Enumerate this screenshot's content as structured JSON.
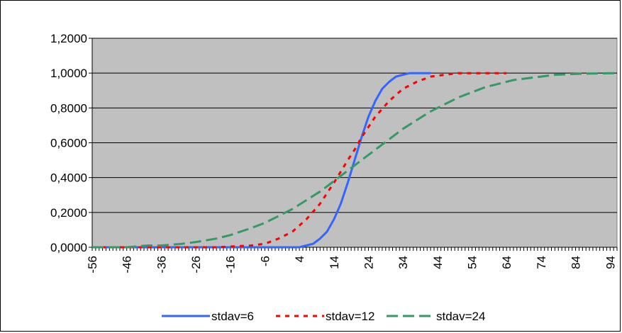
{
  "chart_data": {
    "type": "line",
    "title": "",
    "xlabel": "",
    "ylabel": "",
    "ylim": [
      0,
      1.2
    ],
    "xlim": [
      -56,
      96
    ],
    "y_ticks": [
      "0,0000",
      "0,2000",
      "0,4000",
      "0,6000",
      "0,8000",
      "1,0000",
      "1,2000"
    ],
    "x_tick_labels": [
      "-56",
      "-46",
      "-36",
      "-26",
      "-16",
      "-6",
      "4",
      "14",
      "24",
      "34",
      "44",
      "54",
      "64",
      "74",
      "84",
      "94"
    ],
    "grid": "horizontal",
    "plot_background": "#c0c0c0",
    "legend_position": "bottom",
    "series": [
      {
        "name": "stdav=6",
        "color": "#3366ff",
        "dash": "solid",
        "x": [
          -56,
          0,
          4,
          6,
          8,
          10,
          12,
          14,
          16,
          18,
          20,
          22,
          24,
          26,
          28,
          30,
          32,
          34,
          36,
          40,
          42
        ],
        "y": [
          0.0,
          0.0,
          0.0,
          0.01,
          0.02,
          0.05,
          0.09,
          0.16,
          0.25,
          0.37,
          0.5,
          0.63,
          0.75,
          0.84,
          0.91,
          0.95,
          0.98,
          0.99,
          1.0,
          1.0,
          1.0
        ]
      },
      {
        "name": "stdav=12",
        "color": "#ff0000",
        "dash": "dotted",
        "x": [
          -56,
          -20,
          -10,
          -6,
          -2,
          2,
          6,
          10,
          14,
          18,
          20,
          22,
          26,
          30,
          34,
          38,
          42,
          46,
          50,
          56,
          64
        ],
        "y": [
          0.0,
          0.0,
          0.01,
          0.02,
          0.05,
          0.09,
          0.16,
          0.25,
          0.37,
          0.5,
          0.56,
          0.63,
          0.75,
          0.84,
          0.91,
          0.95,
          0.98,
          0.99,
          1.0,
          1.0,
          1.0
        ]
      },
      {
        "name": "stdav=24",
        "color": "#339966",
        "dash": "dashed",
        "x": [
          -56,
          -46,
          -40,
          -36,
          -30,
          -26,
          -20,
          -16,
          -10,
          -6,
          -2,
          2,
          6,
          10,
          14,
          18,
          22,
          26,
          30,
          34,
          38,
          42,
          46,
          50,
          54,
          58,
          62,
          66,
          70,
          74,
          78,
          86,
          96
        ],
        "y": [
          0.0,
          0.0,
          0.01,
          0.01,
          0.02,
          0.03,
          0.05,
          0.07,
          0.11,
          0.14,
          0.18,
          0.22,
          0.27,
          0.32,
          0.38,
          0.44,
          0.5,
          0.56,
          0.62,
          0.68,
          0.73,
          0.78,
          0.82,
          0.86,
          0.89,
          0.92,
          0.94,
          0.96,
          0.97,
          0.98,
          0.99,
          0.997,
          1.0
        ]
      }
    ]
  }
}
